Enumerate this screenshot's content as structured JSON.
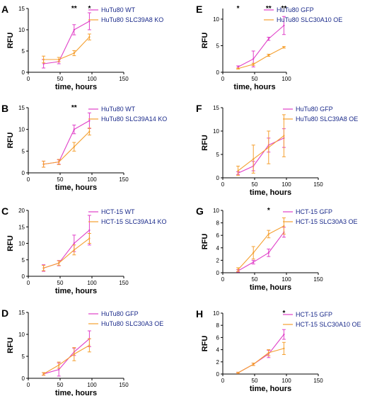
{
  "colors": {
    "wt_or_control": "#e040c8",
    "treatment": "#f5a030",
    "axis": "#000000",
    "legend_text": "#1a2a8a"
  },
  "chart_data": [
    {
      "letter": "A",
      "type": "line",
      "xlabel": "time, hours",
      "ylabel": "RFU",
      "xlim": [
        0,
        150
      ],
      "ylim": [
        0,
        15
      ],
      "xticks": [
        0,
        50,
        100,
        150
      ],
      "yticks": [
        0,
        5,
        10,
        15
      ],
      "x": [
        24,
        48,
        72,
        96
      ],
      "series": [
        {
          "name": "HuTu80 WT",
          "color": "#e040c8",
          "values": [
            2,
            2.5,
            10,
            12
          ],
          "err": [
            1,
            0.5,
            1.2,
            2
          ]
        },
        {
          "name": "HuTu80 SLC39A8 KO",
          "color": "#f5a030",
          "values": [
            3,
            3,
            4.5,
            8.3
          ],
          "err": [
            0.8,
            0.5,
            0.6,
            0.7
          ]
        }
      ],
      "significance": [
        {
          "x": 72,
          "label": "**"
        },
        {
          "x": 96,
          "label": "*"
        }
      ]
    },
    {
      "letter": "B",
      "type": "line",
      "xlabel": "time, hours",
      "ylabel": "RFU",
      "xlim": [
        0,
        150
      ],
      "ylim": [
        0,
        15
      ],
      "xticks": [
        0,
        50,
        100,
        150
      ],
      "yticks": [
        0,
        5,
        10,
        15
      ],
      "x": [
        24,
        48,
        72,
        96
      ],
      "series": [
        {
          "name": "HuTu80 WT",
          "color": "#e040c8",
          "values": [
            2,
            2.5,
            10,
            12
          ],
          "err": [
            0.7,
            0.5,
            1,
            1.8
          ]
        },
        {
          "name": "HuTu80 SLC39A14 KO",
          "color": "#f5a030",
          "values": [
            2,
            2.5,
            6,
            9.5
          ],
          "err": [
            0.7,
            0.6,
            1,
            0.8
          ]
        }
      ],
      "significance": [
        {
          "x": 72,
          "label": "**"
        }
      ]
    },
    {
      "letter": "C",
      "type": "line",
      "xlabel": "time, hours",
      "ylabel": "RFU",
      "xlim": [
        0,
        150
      ],
      "ylim": [
        0,
        20
      ],
      "xticks": [
        0,
        50,
        100,
        150
      ],
      "yticks": [
        0,
        5,
        10,
        15,
        20
      ],
      "x": [
        24,
        48,
        72,
        96
      ],
      "series": [
        {
          "name": "HCT-15 WT",
          "color": "#e040c8",
          "values": [
            2.5,
            4,
            10,
            14
          ],
          "err": [
            1,
            0.8,
            2.5,
            4.5
          ]
        },
        {
          "name": "HCT-15 SLC39A14 KO",
          "color": "#f5a030",
          "values": [
            2.5,
            4,
            8,
            11.5
          ],
          "err": [
            0.8,
            0.7,
            1.5,
            1.5
          ]
        }
      ],
      "significance": []
    },
    {
      "letter": "D",
      "type": "line",
      "xlabel": "time, hours",
      "ylabel": "RFU",
      "xlim": [
        0,
        150
      ],
      "ylim": [
        0,
        15
      ],
      "xticks": [
        0,
        50,
        100,
        150
      ],
      "yticks": [
        0,
        5,
        10,
        15
      ],
      "x": [
        24,
        48,
        72,
        96
      ],
      "series": [
        {
          "name": "HuTu80 GFP",
          "color": "#e040c8",
          "values": [
            1,
            2,
            6,
            9
          ],
          "err": [
            0.3,
            1.5,
            0.8,
            1.8
          ]
        },
        {
          "name": "HuTu80 SLC30A3 OE",
          "color": "#f5a030",
          "values": [
            1,
            3,
            5.5,
            7.5
          ],
          "err": [
            0.3,
            0.7,
            1.5,
            1.5
          ]
        }
      ],
      "significance": []
    },
    {
      "letter": "E",
      "type": "line",
      "xlabel": "time, hours",
      "ylabel": "RFU",
      "xlim": [
        0,
        100
      ],
      "ylim": [
        0,
        12
      ],
      "xticks": [
        0,
        50,
        100
      ],
      "yticks": [
        0,
        5,
        10
      ],
      "x": [
        24,
        48,
        72,
        96
      ],
      "series": [
        {
          "name": "HuTu80 GFP",
          "color": "#e040c8",
          "values": [
            1,
            2.5,
            6.3,
            8.8
          ],
          "err": [
            0.2,
            1.5,
            0.3,
            1.7
          ]
        },
        {
          "name": "HuTu80 SLC30A10 OE",
          "color": "#f5a030",
          "values": [
            0.7,
            1.5,
            3.2,
            4.7
          ],
          "err": [
            0.1,
            0.2,
            0.2,
            0.15
          ]
        }
      ],
      "significance": [
        {
          "x": 24,
          "label": "*"
        },
        {
          "x": 72,
          "label": "**"
        },
        {
          "x": 96,
          "label": "**"
        }
      ]
    },
    {
      "letter": "F",
      "type": "line",
      "xlabel": "time, hours",
      "ylabel": "RFU",
      "xlim": [
        0,
        150
      ],
      "ylim": [
        0,
        15
      ],
      "xticks": [
        0,
        50,
        100,
        150
      ],
      "yticks": [
        0,
        5,
        10,
        15
      ],
      "x": [
        24,
        48,
        72,
        96
      ],
      "series": [
        {
          "name": "HuTu80 GFP",
          "color": "#e040c8",
          "values": [
            1,
            2.5,
            7,
            8.5
          ],
          "err": [
            0.3,
            1,
            1.5,
            2
          ]
        },
        {
          "name": "HuTu80 SLC39A8 OE",
          "color": "#f5a030",
          "values": [
            1.5,
            4,
            6.5,
            9
          ],
          "err": [
            1,
            3,
            3.5,
            4.5
          ]
        }
      ],
      "significance": []
    },
    {
      "letter": "G",
      "type": "line",
      "xlabel": "time, hours",
      "ylabel": "RFU",
      "xlim": [
        0,
        150
      ],
      "ylim": [
        0,
        10
      ],
      "xticks": [
        0,
        50,
        100,
        150
      ],
      "yticks": [
        0,
        2,
        4,
        6,
        8,
        10
      ],
      "x": [
        24,
        48,
        72,
        96
      ],
      "series": [
        {
          "name": "HCT-15 GFP",
          "color": "#e040c8",
          "values": [
            0.3,
            1.7,
            3.2,
            6.5
          ],
          "err": [
            0.2,
            0.3,
            0.6,
            0.8
          ]
        },
        {
          "name": "HCT-15 SLC30A3 OE",
          "color": "#f5a030",
          "values": [
            0.5,
            3.2,
            6.2,
            7.5
          ],
          "err": [
            0.3,
            1,
            0.6,
            1.3
          ]
        }
      ],
      "significance": [
        {
          "x": 72,
          "label": "*"
        }
      ]
    },
    {
      "letter": "H",
      "type": "line",
      "xlabel": "time, hours",
      "ylabel": "RFU",
      "xlim": [
        0,
        150
      ],
      "ylim": [
        0,
        10
      ],
      "xticks": [
        0,
        50,
        100,
        150
      ],
      "yticks": [
        0,
        2,
        4,
        6,
        8,
        10
      ],
      "x": [
        24,
        48,
        72,
        96
      ],
      "series": [
        {
          "name": "HCT-15 GFP",
          "color": "#e040c8",
          "values": [
            0.2,
            1.6,
            3.3,
            6.5
          ],
          "err": [
            0.1,
            0.2,
            0.6,
            0.8
          ]
        },
        {
          "name": "HCT-15 SLC30A10 OE",
          "color": "#f5a030",
          "values": [
            0.2,
            1.6,
            3.5,
            4.2
          ],
          "err": [
            0.1,
            0.2,
            0.5,
            1
          ]
        }
      ],
      "significance": [
        {
          "x": 96,
          "label": "*"
        }
      ]
    }
  ]
}
